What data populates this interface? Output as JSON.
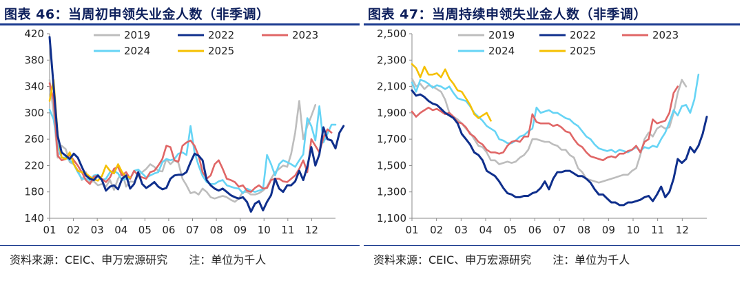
{
  "charts": [
    {
      "figure_label": "图表 46：当周初申领失业金人数（非季调）",
      "source": "资料来源：CEIC、申万宏源研究",
      "note": "注：单位为千人"
    },
    {
      "figure_label": "图表 47：当周持续申领失业金人数（非季调）",
      "source": "资料来源：CEIC、申万宏源研究",
      "note": "注：单位为千人"
    }
  ],
  "colors": {
    "2019": "#bdbdbd",
    "2022": "#0f2f8c",
    "2023": "#e06666",
    "2024": "#66d4f5",
    "2025": "#f5c000",
    "title": "#0d1f5c"
  },
  "chart_data": [
    {
      "type": "line",
      "title": "图表 46：当周初申领失业金人数（非季调）",
      "ylim": [
        140,
        420
      ],
      "yticks": [
        "140",
        "180",
        "220",
        "260",
        "300",
        "340",
        "380",
        "420"
      ],
      "xticks": [
        "01",
        "02",
        "03",
        "04",
        "05",
        "06",
        "07",
        "08",
        "09",
        "10",
        "11",
        "12"
      ],
      "legend": [
        "2019",
        "2022",
        "2023",
        "2024",
        "2025"
      ],
      "legend_position": "top",
      "grid": false,
      "series": [
        {
          "name": "2019",
          "values": [
            350,
            300,
            232,
            250,
            245,
            225,
            222,
            213,
            198,
            210,
            195,
            196,
            190,
            192,
            188,
            198,
            183,
            200,
            210,
            188,
            196,
            195,
            204,
            210,
            215,
            222,
            218,
            212,
            211,
            230,
            222,
            228,
            224,
            200,
            190,
            178,
            180,
            176,
            185,
            180,
            172,
            170,
            172,
            174,
            172,
            168,
            165,
            170,
            180,
            180,
            176,
            176,
            178,
            182,
            188,
            200,
            210,
            215,
            220,
            218,
            238,
            270,
            318,
            260,
            280,
            295,
            312
          ]
        },
        {
          "name": "2022",
          "values": [
            415,
            340,
            265,
            240,
            235,
            230,
            238,
            232,
            218,
            205,
            200,
            198,
            205,
            198,
            182,
            188,
            190,
            184,
            200,
            205,
            185,
            192,
            210,
            192,
            186,
            190,
            195,
            188,
            184,
            186,
            200,
            205,
            206,
            206,
            210,
            225,
            238,
            235,
            228,
            198,
            190,
            185,
            182,
            185,
            180,
            175,
            172,
            170,
            172,
            165,
            150,
            162,
            166,
            152,
            165,
            175,
            200,
            185,
            180,
            190,
            190,
            196,
            212,
            198,
            218,
            248,
            220,
            237,
            278,
            260,
            258,
            246,
            270,
            280
          ]
        },
        {
          "name": "2023",
          "values": [
            345,
            320,
            235,
            228,
            230,
            236,
            228,
            220,
            210,
            198,
            192,
            203,
            205,
            200,
            195,
            202,
            215,
            218,
            205,
            210,
            200,
            212,
            205,
            202,
            200,
            210,
            212,
            220,
            230,
            250,
            248,
            228,
            226,
            250,
            255,
            258,
            250,
            235,
            210,
            200,
            205,
            222,
            228,
            215,
            200,
            198,
            195,
            188,
            190,
            182,
            180,
            186,
            190,
            185,
            186,
            198,
            200,
            200,
            196,
            195,
            200,
            205,
            215,
            228,
            210,
            260,
            250,
            240,
            262,
            275,
            270
          ]
        },
        {
          "name": "2024",
          "values": [
            305,
            290,
            250,
            232,
            232,
            228,
            222,
            210,
            200,
            200,
            198,
            205,
            206,
            198,
            200,
            210,
            212,
            208,
            198,
            200,
            200,
            212,
            214,
            208,
            202,
            205,
            208,
            210,
            225,
            230,
            228,
            230,
            238,
            240,
            236,
            280,
            240,
            220,
            204,
            195,
            192,
            192,
            196,
            198,
            190,
            188,
            186,
            185,
            178,
            185,
            182,
            180,
            182,
            184,
            236,
            222,
            205,
            222,
            228,
            225,
            222,
            218,
            228,
            237,
            292,
            280,
            258,
            310,
            255,
            268,
            282,
            282
          ]
        },
        {
          "name": "2025",
          "values": [
            318,
            350,
            268,
            232,
            230,
            240,
            222,
            212,
            210,
            208,
            203,
            199,
            197,
            204,
            220,
            212,
            208,
            222,
            210,
            203,
            202
          ]
        }
      ]
    },
    {
      "type": "line",
      "title": "图表 47：当周持续申领失业金人数（非季调）",
      "ylim": [
        1100,
        2500
      ],
      "yticks": [
        "1,100",
        "1,300",
        "1,500",
        "1,700",
        "1,900",
        "2,100",
        "2,300",
        "2,500"
      ],
      "xticks": [
        "01",
        "02",
        "03",
        "04",
        "05",
        "06",
        "07",
        "08",
        "09",
        "10",
        "11",
        "12"
      ],
      "legend": [
        "2019",
        "2022",
        "2023",
        "2024",
        "2025"
      ],
      "legend_position": "top",
      "grid": false,
      "series": [
        {
          "name": "2019",
          "values": [
            2160,
            2100,
            2120,
            2080,
            2110,
            2100,
            2080,
            2060,
            2000,
            1900,
            1870,
            1850,
            1820,
            1780,
            1750,
            1700,
            1650,
            1640,
            1600,
            1540,
            1540,
            1510,
            1520,
            1530,
            1520,
            1530,
            1560,
            1580,
            1620,
            1700,
            1700,
            1690,
            1680,
            1680,
            1660,
            1650,
            1620,
            1620,
            1580,
            1560,
            1480,
            1450,
            1400,
            1390,
            1380,
            1370,
            1380,
            1390,
            1400,
            1410,
            1420,
            1430,
            1430,
            1460,
            1480,
            1580,
            1700,
            1750,
            1720,
            1780,
            1800,
            1780,
            1790,
            1900,
            2050,
            2150,
            2100
          ]
        },
        {
          "name": "2022",
          "values": [
            2070,
            2030,
            2040,
            2020,
            1990,
            1970,
            1960,
            1930,
            1900,
            1880,
            1860,
            1820,
            1740,
            1700,
            1660,
            1600,
            1580,
            1540,
            1460,
            1440,
            1420,
            1380,
            1330,
            1290,
            1280,
            1260,
            1260,
            1270,
            1270,
            1290,
            1300,
            1330,
            1380,
            1320,
            1400,
            1450,
            1450,
            1460,
            1460,
            1440,
            1420,
            1420,
            1400,
            1370,
            1320,
            1280,
            1280,
            1250,
            1220,
            1220,
            1200,
            1200,
            1220,
            1220,
            1230,
            1240,
            1260,
            1270,
            1230,
            1280,
            1340,
            1260,
            1300,
            1400,
            1550,
            1520,
            1550,
            1640,
            1600,
            1650,
            1740,
            1870
          ]
        },
        {
          "name": "2023",
          "values": [
            1910,
            1870,
            1900,
            1920,
            1940,
            1920,
            1930,
            1910,
            1890,
            1900,
            1870,
            1830,
            1820,
            1790,
            1740,
            1720,
            1680,
            1660,
            1620,
            1600,
            1600,
            1590,
            1600,
            1650,
            1680,
            1690,
            1680,
            1720,
            1720,
            1890,
            1830,
            1820,
            1820,
            1820,
            1800,
            1810,
            1790,
            1760,
            1750,
            1700,
            1660,
            1640,
            1600,
            1570,
            1560,
            1550,
            1540,
            1560,
            1570,
            1560,
            1590,
            1590,
            1610,
            1620,
            1650,
            1600,
            1680,
            1700,
            1850,
            1820,
            1830,
            1840,
            1900,
            2050,
            2100
          ]
        },
        {
          "name": "2024",
          "values": [
            2130,
            2060,
            2150,
            2140,
            2120,
            2090,
            2110,
            2100,
            2080,
            2100,
            2050,
            2010,
            2000,
            1990,
            1950,
            1900,
            1870,
            1840,
            1800,
            1780,
            1760,
            1700,
            1690,
            1670,
            1670,
            1690,
            1720,
            1730,
            1760,
            1780,
            1940,
            1900,
            1910,
            1920,
            1900,
            1900,
            1880,
            1860,
            1850,
            1820,
            1800,
            1760,
            1720,
            1700,
            1660,
            1630,
            1620,
            1610,
            1620,
            1600,
            1620,
            1610,
            1600,
            1620,
            1640,
            1610,
            1640,
            1630,
            1650,
            1640,
            1700,
            1750,
            1830,
            1920,
            1880,
            1950,
            1960,
            1900,
            2000,
            2190
          ]
        },
        {
          "name": "2025",
          "values": [
            2270,
            2240,
            2170,
            2250,
            2190,
            2190,
            2200,
            2170,
            2230,
            2160,
            2120,
            2070,
            2060,
            2010,
            1960,
            1890,
            1860,
            1880,
            1900,
            1840
          ]
        }
      ]
    }
  ]
}
